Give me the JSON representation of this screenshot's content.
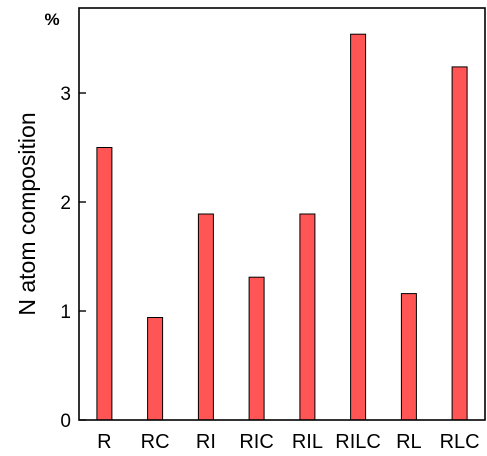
{
  "chart_data": {
    "type": "bar",
    "categories": [
      "R",
      "RC",
      "RI",
      "RIC",
      "RIL",
      "RILC",
      "RL",
      "RLC"
    ],
    "values": [
      2.5,
      0.94,
      1.89,
      1.31,
      1.89,
      3.54,
      1.16,
      3.24
    ],
    "ylabel": "N atom composition",
    "unit": "%",
    "ylim": [
      0,
      3.78
    ],
    "yticks": [
      0,
      1,
      2,
      3
    ],
    "bar_color": "#ff5555",
    "bar_edge_color": "#000000",
    "grid": false
  }
}
